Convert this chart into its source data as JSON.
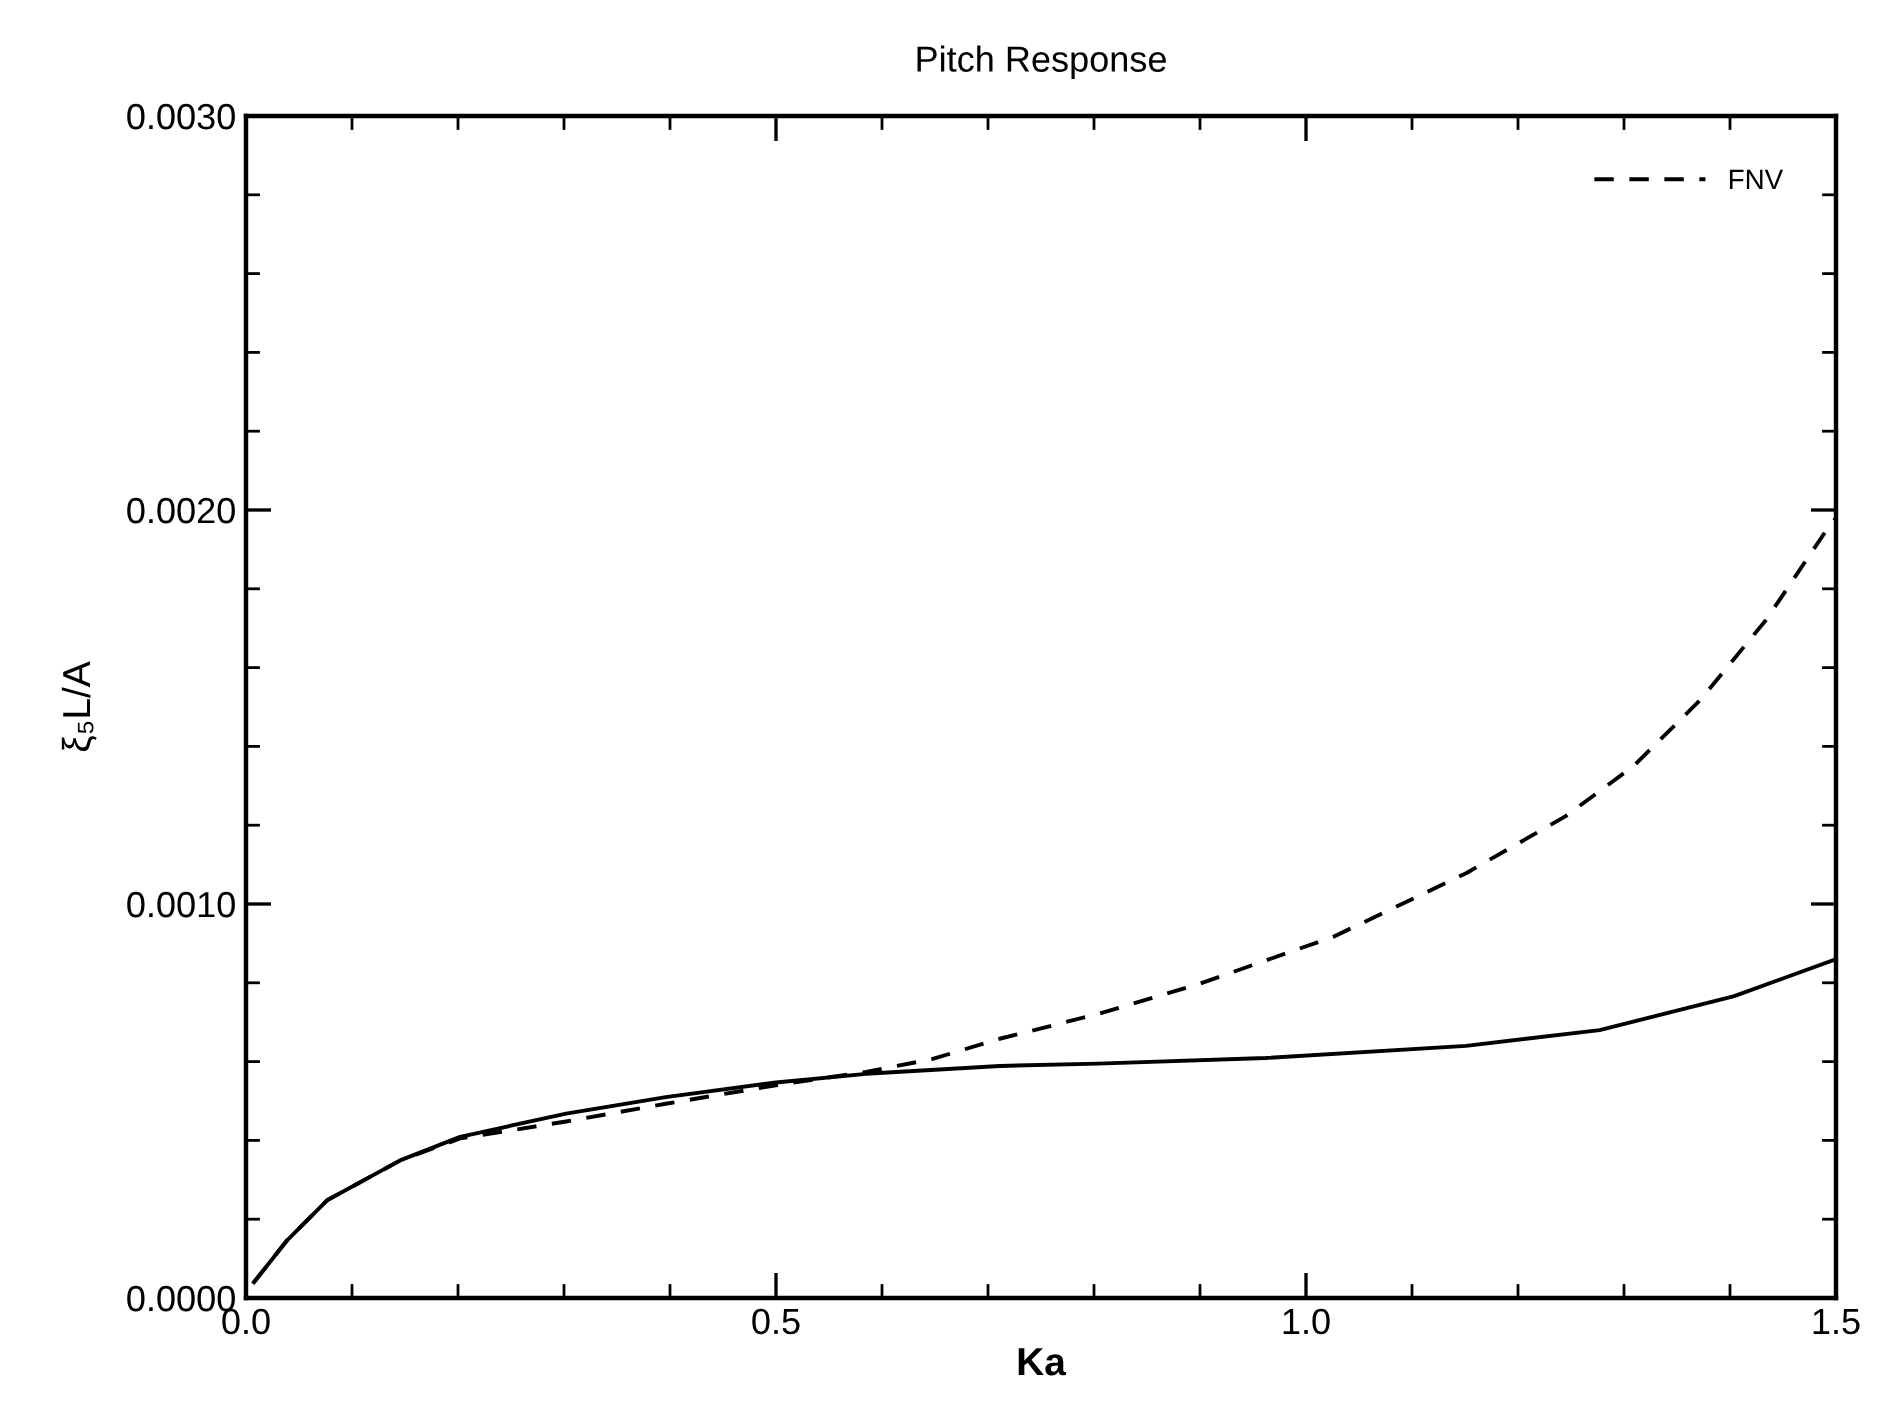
{
  "chart_data": {
    "type": "line",
    "title": "Pitch Response",
    "xlabel": "Ka",
    "ylabel": "ξ₅L/A",
    "xlim": [
      0,
      1.5
    ],
    "ylim": [
      0,
      0.003
    ],
    "xticks": [
      {
        "value": 0,
        "label": "0.0"
      },
      {
        "value": 0.5,
        "label": "0.5"
      },
      {
        "value": 1.0,
        "label": "1.0"
      },
      {
        "value": 1.5,
        "label": "1.5"
      }
    ],
    "yticks": [
      {
        "value": 0,
        "label": "0.0000"
      },
      {
        "value": 0.001,
        "label": "0.0010"
      },
      {
        "value": 0.002,
        "label": "0.0020"
      },
      {
        "value": 0.003,
        "label": "0.0030"
      }
    ],
    "grid": false,
    "legend": "top right",
    "series": [
      {
        "name": "FNV",
        "color": "#000000",
        "line_style": "dashed",
        "x": [
          0.0075,
          0.039,
          0.0765,
          0.146,
          0.202,
          0.302,
          0.396,
          0.5,
          0.585,
          0.647,
          0.711,
          0.804,
          0.9,
          1.026,
          1.151,
          1.245,
          1.309,
          1.372,
          1.434,
          1.491,
          1.5
        ],
        "values": [
          4e-05,
          0.000147,
          0.000248,
          0.00035,
          0.000405,
          0.000448,
          0.000493,
          0.00054,
          0.000574,
          0.000606,
          0.000658,
          0.000721,
          0.000798,
          0.000917,
          0.001078,
          0.001223,
          0.00135,
          0.001518,
          0.001721,
          0.001949,
          0.00198
        ]
      },
      {
        "color": "#000000",
        "line_style": "solid",
        "x": [
          0.0075,
          0.039,
          0.0765,
          0.146,
          0.202,
          0.302,
          0.396,
          0.5,
          0.585,
          0.711,
          0.804,
          0.962,
          1.151,
          1.277,
          1.404,
          1.498
        ],
        "values": [
          4e-05,
          0.000147,
          0.000248,
          0.00035,
          0.000409,
          0.000468,
          0.00051,
          0.000547,
          0.000569,
          0.000589,
          0.000595,
          0.000609,
          0.00064,
          0.00068,
          0.000766,
          0.000858
        ]
      }
    ]
  }
}
